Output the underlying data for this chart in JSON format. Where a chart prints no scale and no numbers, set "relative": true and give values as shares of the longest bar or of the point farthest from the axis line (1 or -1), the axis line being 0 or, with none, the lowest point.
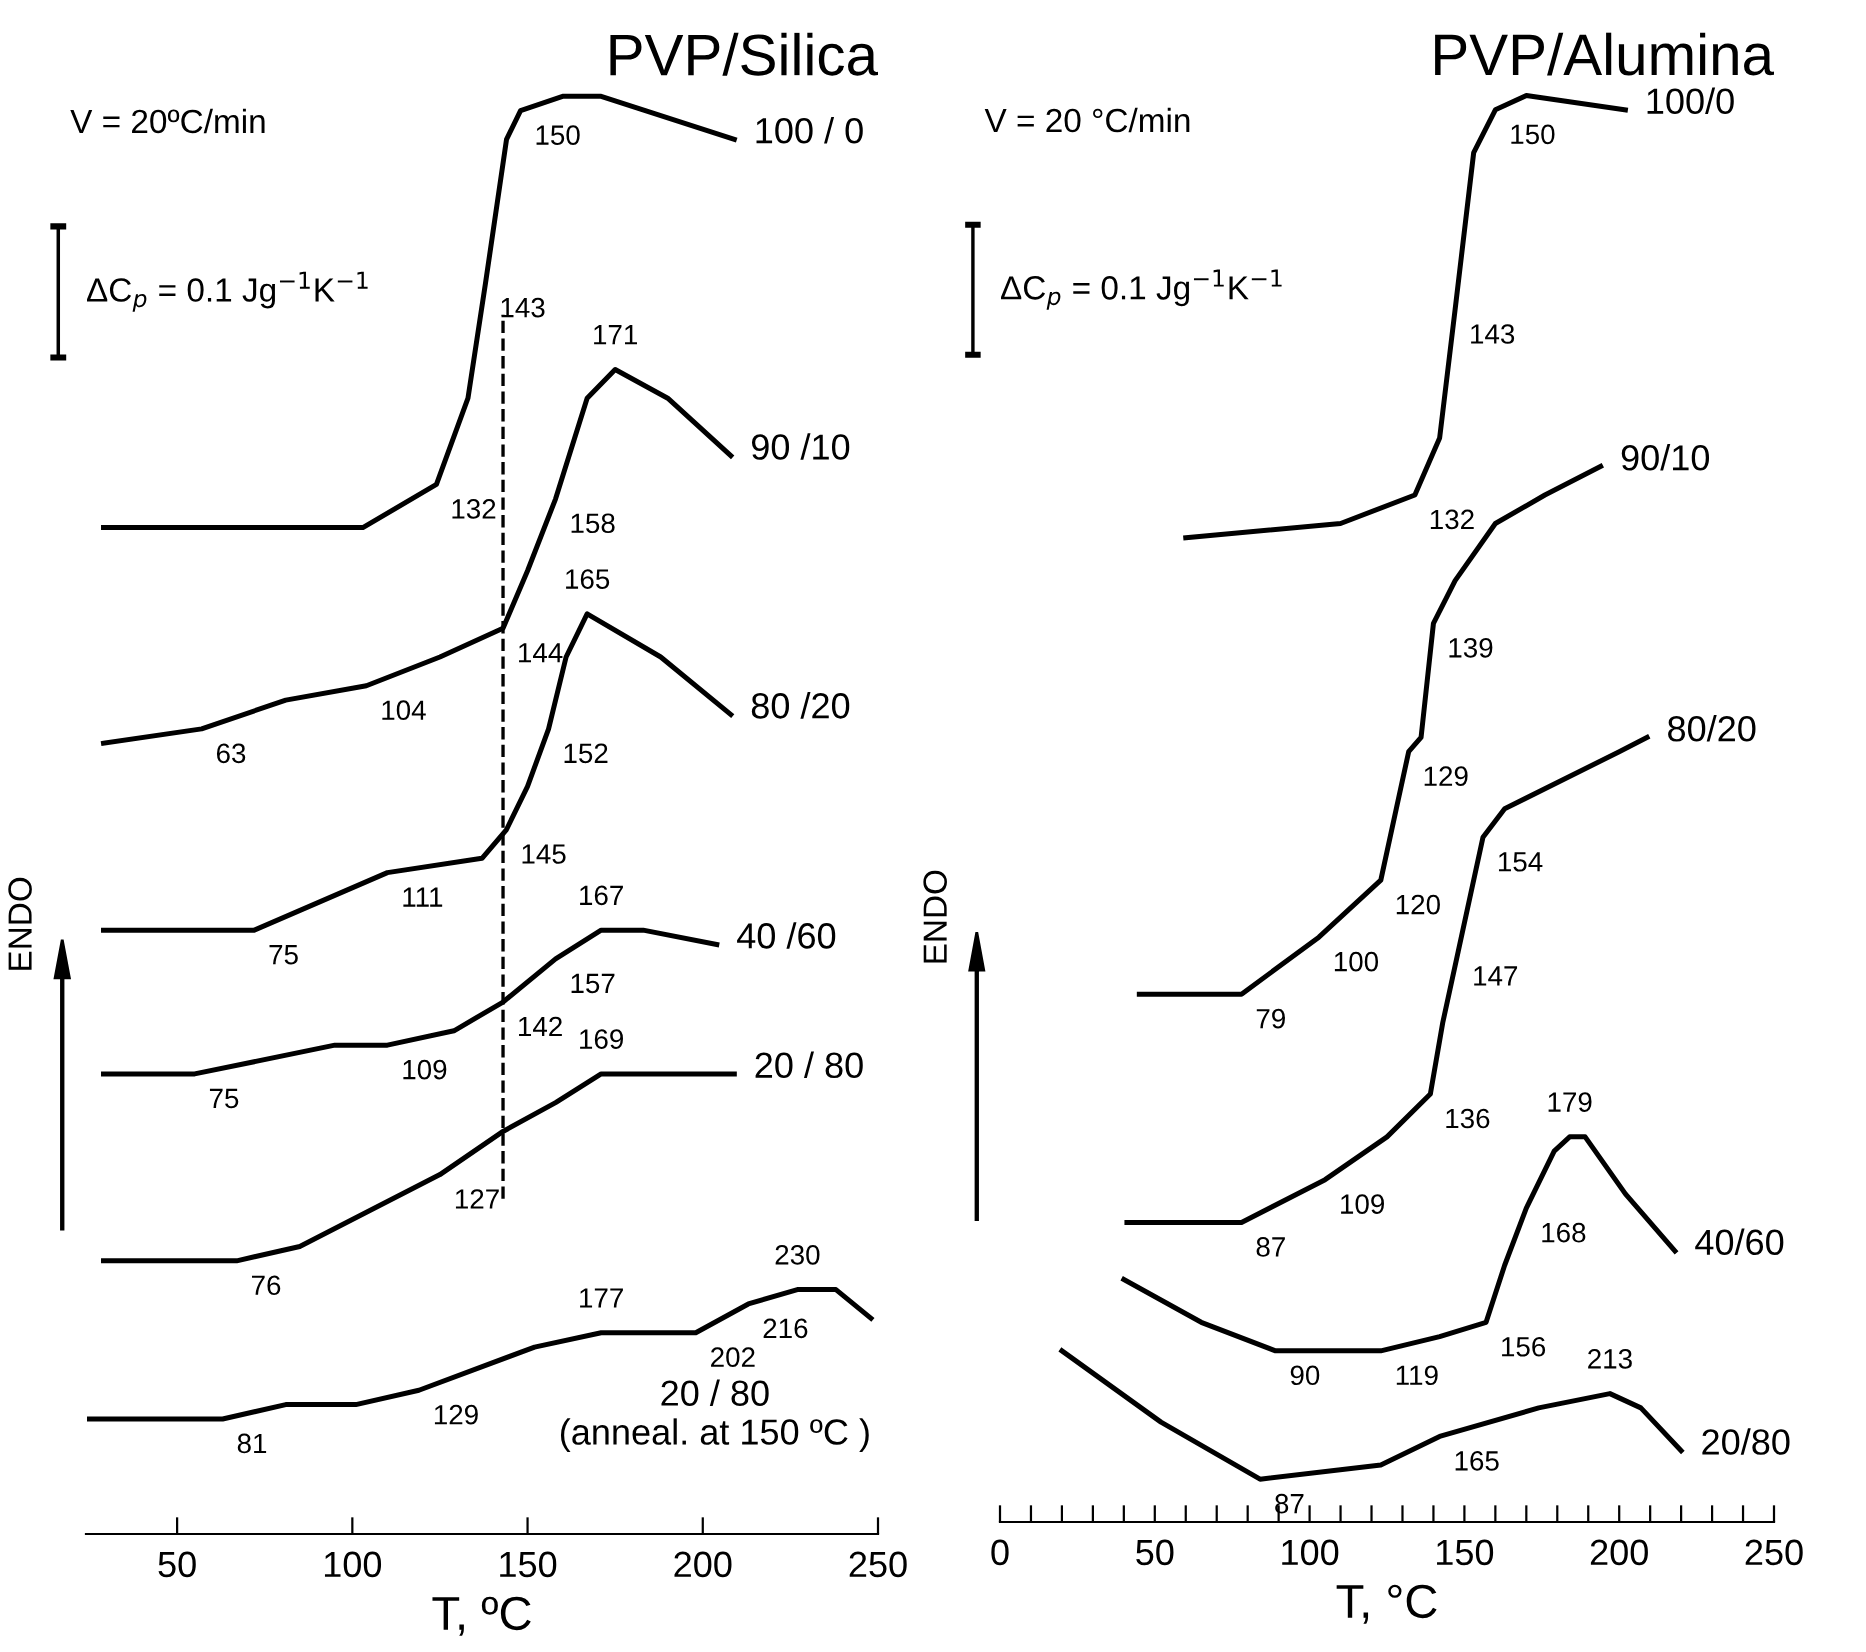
{
  "chart_data": [
    {
      "type": "line",
      "relative": true,
      "title": "PVP/Silica",
      "xlabel": "T, ºC",
      "ylabel": "ENDO",
      "tick_labels": "x",
      "xlim": [
        24,
        250
      ],
      "xticks": [
        50,
        100,
        150,
        200,
        250
      ],
      "ref_lines": [
        {
          "axis": "x",
          "value": 143,
          "line_style": "dashed",
          "color": "#000000"
        }
      ],
      "series": [
        {
          "name": "100 / 0",
          "color": "#000000",
          "x": [
            29,
            103,
            124,
            133,
            138,
            144,
            148,
            160,
            171,
            209
          ],
          "values": [
            0.7,
            0.7,
            0.73,
            0.79,
            0.87,
            0.97,
            0.99,
            1,
            1,
            0.97
          ]
        },
        {
          "name": "90 /10",
          "color": "#000000",
          "x": [
            29,
            57,
            81,
            104,
            125,
            143,
            150,
            158,
            167,
            175,
            190,
            208
          ],
          "values": [
            0.55,
            0.56,
            0.58,
            0.59,
            0.61,
            0.63,
            0.67,
            0.72,
            0.79,
            0.81,
            0.79,
            0.75
          ]
        },
        {
          "name": "80 /20",
          "color": "#000000",
          "x": [
            29,
            72,
            110,
            137,
            144,
            150,
            156,
            161,
            167,
            188,
            208
          ],
          "values": [
            0.42,
            0.42,
            0.46,
            0.47,
            0.49,
            0.52,
            0.56,
            0.61,
            0.64,
            0.61,
            0.57
          ]
        },
        {
          "name": "40 /60",
          "color": "#000000",
          "x": [
            29,
            55,
            95,
            110,
            129,
            143,
            158,
            171,
            183,
            204
          ],
          "values": [
            0.32,
            0.32,
            0.34,
            0.34,
            0.35,
            0.37,
            0.4,
            0.42,
            0.42,
            0.41
          ]
        },
        {
          "name": "20 / 80",
          "color": "#000000",
          "x": [
            29,
            67,
            85,
            125,
            143,
            158,
            171,
            183,
            209
          ],
          "values": [
            0.19,
            0.19,
            0.2,
            0.25,
            0.28,
            0.3,
            0.32,
            0.32,
            0.32
          ]
        },
        {
          "name": "20 / 80\n(anneal. at 150 ºC )",
          "color": "#000000",
          "x": [
            25,
            63,
            81,
            101,
            119,
            152,
            171,
            198,
            213,
            227,
            238,
            248
          ],
          "values": [
            0.08,
            0.08,
            0.09,
            0.09,
            0.1,
            0.13,
            0.14,
            0.14,
            0.16,
            0.17,
            0.17,
            0.15
          ]
        }
      ],
      "annotations": [
        "V = 20ºC/min",
        "ΔC$_{p}$ = 0.1 Jg$^{−1}$K$^{−1}$",
        {
          "text": "150",
          "x": 148,
          "y": 0.99
        },
        {
          "text": "143",
          "x": 138,
          "y": 0.87
        },
        {
          "text": "132",
          "x": 124,
          "y": 0.73
        },
        {
          "text": "171",
          "x": 175,
          "y": 0.81
        },
        {
          "text": "158",
          "x": 158,
          "y": 0.72
        },
        {
          "text": "104",
          "x": 104,
          "y": 0.59
        },
        {
          "text": "144",
          "x": 143,
          "y": 0.63
        },
        {
          "text": "165",
          "x": 167,
          "y": 0.64
        },
        {
          "text": "63",
          "x": 57,
          "y": 0.56
        },
        {
          "text": "152",
          "x": 156,
          "y": 0.56
        },
        {
          "text": "111",
          "x": 110,
          "y": 0.46
        },
        {
          "text": "145",
          "x": 144,
          "y": 0.49
        },
        {
          "text": "75",
          "x": 72,
          "y": 0.42
        },
        {
          "text": "167",
          "x": 171,
          "y": 0.42
        },
        {
          "text": "157",
          "x": 158,
          "y": 0.4
        },
        {
          "text": "109",
          "x": 110,
          "y": 0.34
        },
        {
          "text": "142",
          "x": 143,
          "y": 0.37
        },
        {
          "text": "75",
          "x": 55,
          "y": 0.32
        },
        {
          "text": "169",
          "x": 171,
          "y": 0.32
        },
        {
          "text": "127",
          "x": 125,
          "y": 0.25
        },
        {
          "text": "76",
          "x": 67,
          "y": 0.19
        },
        {
          "text": "230",
          "x": 227,
          "y": 0.17
        },
        {
          "text": "177",
          "x": 171,
          "y": 0.14
        },
        {
          "text": "216",
          "x": 213,
          "y": 0.16
        },
        {
          "text": "202",
          "x": 198,
          "y": 0.14
        },
        {
          "text": "129",
          "x": 119,
          "y": 0.1
        },
        {
          "text": "81",
          "x": 63,
          "y": 0.08
        }
      ]
    },
    {
      "type": "line",
      "relative": true,
      "title": "PVP/Alumina",
      "xlabel": "T, °C",
      "ylabel": "ENDO",
      "tick_labels": "x",
      "xlim": [
        0,
        250
      ],
      "xticks": [
        0,
        {
          "value": 10,
          "label": null
        },
        {
          "value": 20,
          "label": null
        },
        {
          "value": 30,
          "label": null
        },
        {
          "value": 40,
          "label": null
        },
        50,
        {
          "value": 60,
          "label": null
        },
        {
          "value": 70,
          "label": null
        },
        {
          "value": 80,
          "label": null
        },
        {
          "value": 90,
          "label": null
        },
        100,
        {
          "value": 110,
          "label": null
        },
        {
          "value": 120,
          "label": null
        },
        {
          "value": 130,
          "label": null
        },
        {
          "value": 140,
          "label": null
        },
        150,
        {
          "value": 160,
          "label": null
        },
        {
          "value": 170,
          "label": null
        },
        {
          "value": 180,
          "label": null
        },
        {
          "value": 190,
          "label": null
        },
        200,
        {
          "value": 210,
          "label": null
        },
        {
          "value": 220,
          "label": null
        },
        {
          "value": 230,
          "label": null
        },
        {
          "value": 240,
          "label": null
        },
        250
      ],
      "series": [
        {
          "name": "100/0",
          "color": "#000000",
          "x": [
            60,
            110,
            134,
            142,
            147,
            153,
            160,
            170,
            202
          ],
          "values": [
            0.69,
            0.7,
            0.72,
            0.76,
            0.85,
            0.96,
            0.99,
            1,
            0.99
          ]
        },
        {
          "name": "90/10",
          "color": "#000000",
          "x": [
            45,
            78,
            103,
            123,
            128,
            132,
            136,
            140,
            147,
            160,
            176,
            194
          ],
          "values": [
            0.37,
            0.37,
            0.41,
            0.45,
            0.5,
            0.54,
            0.55,
            0.63,
            0.66,
            0.7,
            0.72,
            0.74
          ]
        },
        {
          "name": "80/20",
          "color": "#000000",
          "x": [
            41,
            78,
            105,
            125,
            139,
            143,
            148,
            156,
            163,
            200,
            209
          ],
          "values": [
            0.21,
            0.21,
            0.24,
            0.27,
            0.3,
            0.35,
            0.4,
            0.48,
            0.5,
            0.54,
            0.55
          ]
        },
        {
          "name": "40/60",
          "color": "#000000",
          "x": [
            40,
            65,
            89,
            123,
            142,
            157,
            163,
            170,
            179,
            184,
            189,
            202,
            218
          ],
          "values": [
            0.17,
            0.14,
            0.12,
            0.12,
            0.13,
            0.14,
            0.18,
            0.22,
            0.26,
            0.27,
            0.27,
            0.23,
            0.19
          ]
        },
        {
          "name": "20/80",
          "color": "#000000",
          "x": [
            20,
            52,
            84,
            123,
            142,
            174,
            197,
            207,
            220
          ],
          "values": [
            0.12,
            0.07,
            0.03,
            0.04,
            0.06,
            0.08,
            0.09,
            0.08,
            0.05
          ]
        }
      ],
      "annotations": [
        "V = 20 °C/min",
        "ΔC$_{p}$ = 0.1 Jg$^{−1}$K$^{−1}$",
        {
          "text": "150",
          "x": 160,
          "y": 0.99
        },
        {
          "text": "143",
          "x": 147,
          "y": 0.85
        },
        {
          "text": "132",
          "x": 134,
          "y": 0.72
        },
        {
          "text": "139",
          "x": 140,
          "y": 0.63
        },
        {
          "text": "129",
          "x": 132,
          "y": 0.54
        },
        {
          "text": "120",
          "x": 123,
          "y": 0.45
        },
        {
          "text": "100",
          "x": 103,
          "y": 0.41
        },
        {
          "text": "79",
          "x": 78,
          "y": 0.37
        },
        {
          "text": "154",
          "x": 156,
          "y": 0.48
        },
        {
          "text": "147",
          "x": 148,
          "y": 0.4
        },
        {
          "text": "136",
          "x": 139,
          "y": 0.3
        },
        {
          "text": "109",
          "x": 105,
          "y": 0.24
        },
        {
          "text": "87",
          "x": 78,
          "y": 0.21
        },
        {
          "text": "179",
          "x": 184,
          "y": 0.27
        },
        {
          "text": "168",
          "x": 170,
          "y": 0.22
        },
        {
          "text": "156",
          "x": 157,
          "y": 0.14
        },
        {
          "text": "119",
          "x": 123,
          "y": 0.12
        },
        {
          "text": "90",
          "x": 89,
          "y": 0.12
        },
        {
          "text": "87",
          "x": 84,
          "y": 0.03
        },
        {
          "text": "165",
          "x": 142,
          "y": 0.06
        },
        {
          "text": "213",
          "x": 197,
          "y": 0.09
        }
      ]
    }
  ]
}
